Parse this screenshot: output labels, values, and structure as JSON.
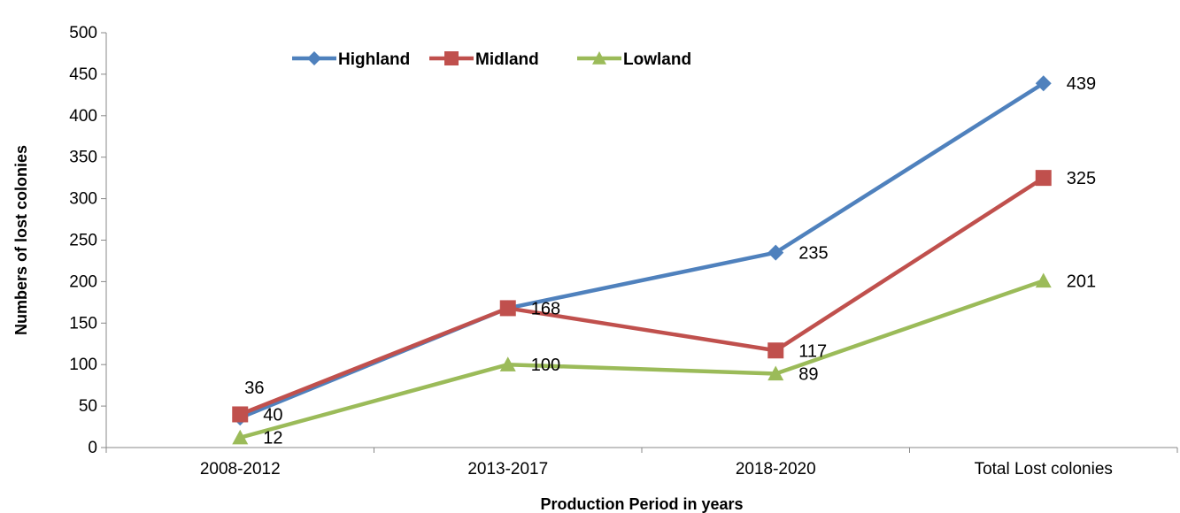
{
  "chart_data": {
    "type": "line",
    "title": "",
    "xlabel": "Production Period in years",
    "ylabel": "Numbers of lost colonies",
    "ylim": [
      0,
      500
    ],
    "ytick_step": 50,
    "grid": false,
    "legend_position": "top-center",
    "categories": [
      "2008-2012",
      "2013-2017",
      "2018-2020",
      "Total Lost colonies"
    ],
    "series": [
      {
        "name": "Highland",
        "color": "#4F81BD",
        "marker": "diamond",
        "values": [
          36,
          168,
          235,
          439
        ],
        "labels": [
          "36",
          "",
          "235",
          "439"
        ]
      },
      {
        "name": "Midland",
        "color": "#C0504D",
        "marker": "square",
        "values": [
          40,
          168,
          117,
          325
        ],
        "labels": [
          "40",
          "168",
          "117",
          "325"
        ]
      },
      {
        "name": "Lowland",
        "color": "#9BBB59",
        "marker": "triangle",
        "values": [
          12,
          100,
          89,
          201
        ],
        "labels": [
          "12",
          "100",
          "89",
          "201"
        ]
      }
    ]
  }
}
